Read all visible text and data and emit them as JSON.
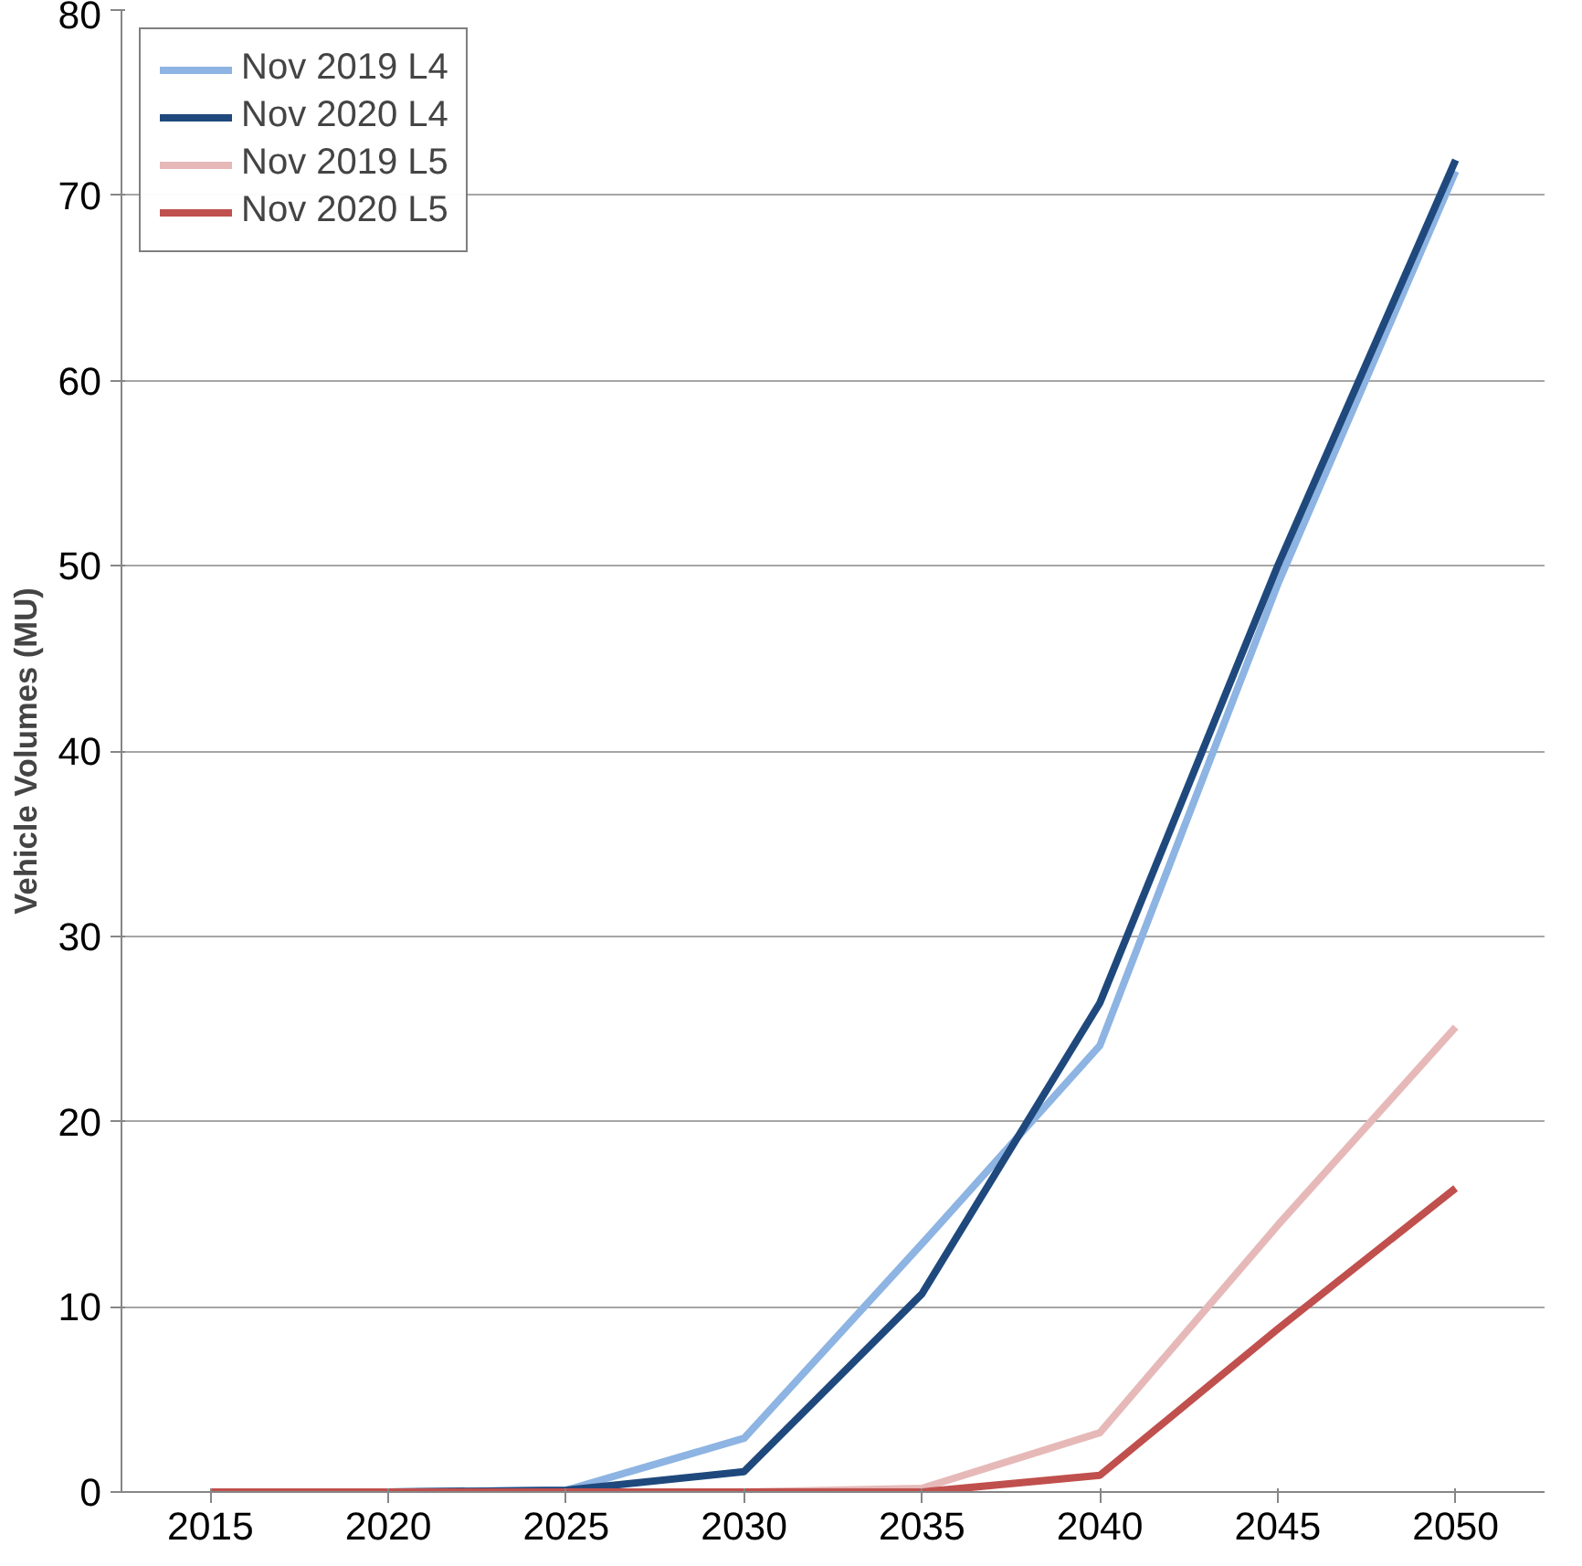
{
  "chart_data": {
    "type": "line",
    "ylabel": "Vehicle Volumes (MU)",
    "categories": [
      "2015",
      "2020",
      "2025",
      "2030",
      "2035",
      "2040",
      "2045",
      "2050"
    ],
    "series": [
      {
        "name": "Nov 2019 L4",
        "color": "#8db4e2",
        "values": [
          0,
          0,
          0.1,
          2.9,
          13.4,
          24.1,
          49,
          71.3
        ]
      },
      {
        "name": "Nov 2020 L4",
        "color": "#1f497d",
        "values": [
          0,
          0,
          0.1,
          1.1,
          10.7,
          26.4,
          50,
          71.9
        ]
      },
      {
        "name": "Nov 2019 L5",
        "color": "#e6b9b8",
        "values": [
          0,
          0,
          0,
          0,
          0.2,
          3.2,
          14.4,
          25.1
        ]
      },
      {
        "name": "Nov 2020 L5",
        "color": "#c0504d",
        "values": [
          0,
          0,
          0,
          0,
          0,
          0.9,
          8.8,
          16.4
        ]
      }
    ],
    "ylim": [
      0,
      80
    ],
    "yticks": [
      0,
      10,
      20,
      30,
      40,
      50,
      60,
      70,
      80
    ],
    "grid": "y",
    "legend": "top left",
    "line_style": "solid",
    "marker": "none"
  }
}
